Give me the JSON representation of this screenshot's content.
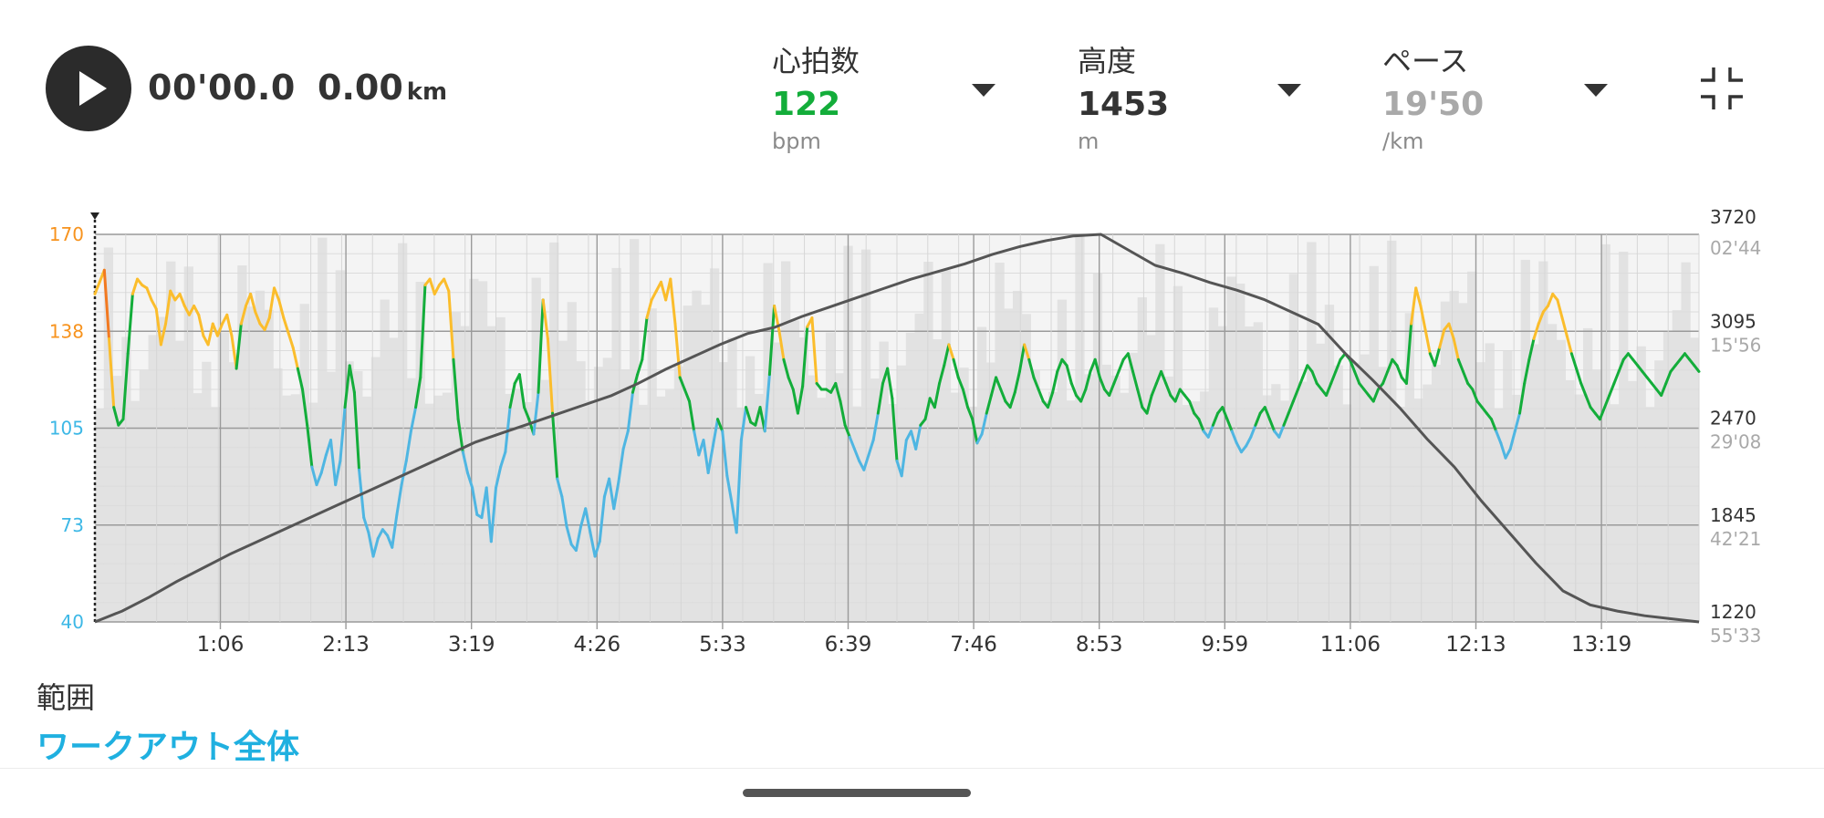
{
  "player": {
    "play_icon": "play-icon",
    "time": "00'00.0",
    "distance": "0.00",
    "distance_unit": "km"
  },
  "metrics": [
    {
      "title": "心拍数",
      "value": "122",
      "unit": "bpm",
      "color": "#13ad3a"
    },
    {
      "title": "高度",
      "value": "1453",
      "unit": "m",
      "color": "#333333"
    },
    {
      "title": "ペース",
      "value": "19'50",
      "unit": "/km",
      "color": "#a9a9a9"
    }
  ],
  "collapse_icon": "collapse-icon",
  "chart_data": {
    "type": "line",
    "x_ticks": [
      "1:06",
      "2:13",
      "3:19",
      "4:26",
      "5:33",
      "6:39",
      "7:46",
      "8:53",
      "9:59",
      "11:06",
      "12:13",
      "13:19"
    ],
    "hr_axis": {
      "ticks": [
        170,
        138,
        105,
        73,
        40
      ],
      "colors": [
        "#f7931e",
        "#f7931e",
        "#3db8e6",
        "#3db8e6",
        "#3db8e6"
      ],
      "ylim": [
        40,
        170
      ]
    },
    "altitude_axis": {
      "ticks": [
        3720,
        3095,
        2470,
        1845,
        1220
      ],
      "ylim": [
        1220,
        3720
      ]
    },
    "pace_axis": {
      "ticks": [
        "02'44",
        "15'56",
        "29'08",
        "42'21",
        "55'33"
      ]
    },
    "hr_zone_colors": {
      "low": "#4fb6e2",
      "mid": "#13ad3a",
      "high": "#fbbd2c",
      "peak": "#f27920"
    },
    "series": [
      {
        "role": "heart_rate",
        "values": [
          150,
          154,
          158,
          135,
          112,
          106,
          108,
          130,
          150,
          155,
          153,
          152,
          148,
          145,
          133,
          140,
          151,
          148,
          150,
          146,
          143,
          146,
          143,
          136,
          133,
          140,
          136,
          140,
          143,
          136,
          125,
          140,
          146,
          150,
          144,
          140,
          138,
          142,
          152,
          148,
          142,
          137,
          132,
          125,
          118,
          106,
          92,
          86,
          90,
          96,
          101,
          86,
          94,
          112,
          126,
          117,
          91,
          75,
          70,
          62,
          68,
          71,
          69,
          65,
          76,
          86,
          94,
          104,
          112,
          122,
          153,
          155,
          150,
          153,
          155,
          151,
          128,
          108,
          97,
          90,
          85,
          76,
          75,
          85,
          67,
          85,
          92,
          97,
          112,
          120,
          123,
          112,
          108,
          103,
          117,
          148,
          135,
          110,
          88,
          82,
          72,
          66,
          64,
          72,
          78,
          70,
          62,
          67,
          82,
          88,
          78,
          87,
          98,
          104,
          117,
          123,
          128,
          142,
          148,
          151,
          154,
          148,
          155,
          140,
          122,
          118,
          114,
          104,
          96,
          101,
          90,
          99,
          108,
          104,
          89,
          80,
          70,
          101,
          112,
          107,
          106,
          112,
          104,
          123,
          146,
          138,
          128,
          122,
          118,
          110,
          119,
          139,
          142,
          120,
          118,
          118,
          117,
          120,
          114,
          106,
          102,
          98,
          94,
          91,
          96,
          101,
          110,
          120,
          125,
          115,
          94,
          89,
          101,
          104,
          98,
          106,
          108,
          115,
          112,
          120,
          126,
          133,
          128,
          122,
          118,
          112,
          108,
          100,
          103,
          110,
          116,
          122,
          118,
          114,
          112,
          117,
          124,
          133,
          128,
          122,
          118,
          114,
          112,
          117,
          124,
          128,
          126,
          120,
          116,
          114,
          118,
          124,
          128,
          122,
          118,
          116,
          120,
          124,
          128,
          130,
          124,
          118,
          112,
          110,
          116,
          120,
          124,
          120,
          116,
          114,
          118,
          116,
          114,
          110,
          108,
          104,
          102,
          106,
          110,
          112,
          108,
          104,
          100,
          97,
          99,
          102,
          106,
          110,
          112,
          108,
          104,
          102,
          106,
          110,
          114,
          118,
          122,
          126,
          124,
          120,
          118,
          116,
          120,
          124,
          128,
          130,
          128,
          124,
          120,
          118,
          116,
          114,
          118,
          120,
          124,
          128,
          126,
          122,
          120,
          140,
          152,
          146,
          138,
          130,
          126,
          132,
          138,
          140,
          135,
          128,
          124,
          120,
          118,
          114,
          112,
          110,
          108,
          104,
          100,
          95,
          98,
          104,
          110,
          120,
          128,
          135,
          140,
          144,
          146,
          150,
          148,
          142,
          136,
          130,
          125,
          120,
          116,
          112,
          110,
          108,
          112,
          116,
          120,
          124,
          128,
          130,
          128,
          126,
          124,
          122,
          120,
          118,
          116,
          120,
          124,
          126,
          128,
          130,
          128,
          126,
          124
        ]
      },
      {
        "role": "altitude",
        "values": [
          1220,
          1290,
          1380,
          1480,
          1570,
          1660,
          1740,
          1820,
          1900,
          1980,
          2060,
          2140,
          2220,
          2300,
          2380,
          2440,
          2500,
          2560,
          2620,
          2680,
          2760,
          2850,
          2930,
          3010,
          3080,
          3120,
          3190,
          3250,
          3310,
          3370,
          3430,
          3480,
          3530,
          3590,
          3640,
          3680,
          3710,
          3720,
          3620,
          3520,
          3470,
          3410,
          3360,
          3300,
          3220,
          3140,
          2950,
          2780,
          2600,
          2400,
          2220,
          2000,
          1800,
          1600,
          1420,
          1330,
          1290,
          1260,
          1240,
          1220
        ]
      }
    ]
  },
  "range": {
    "label": "範囲",
    "value": "ワークアウト全体"
  }
}
